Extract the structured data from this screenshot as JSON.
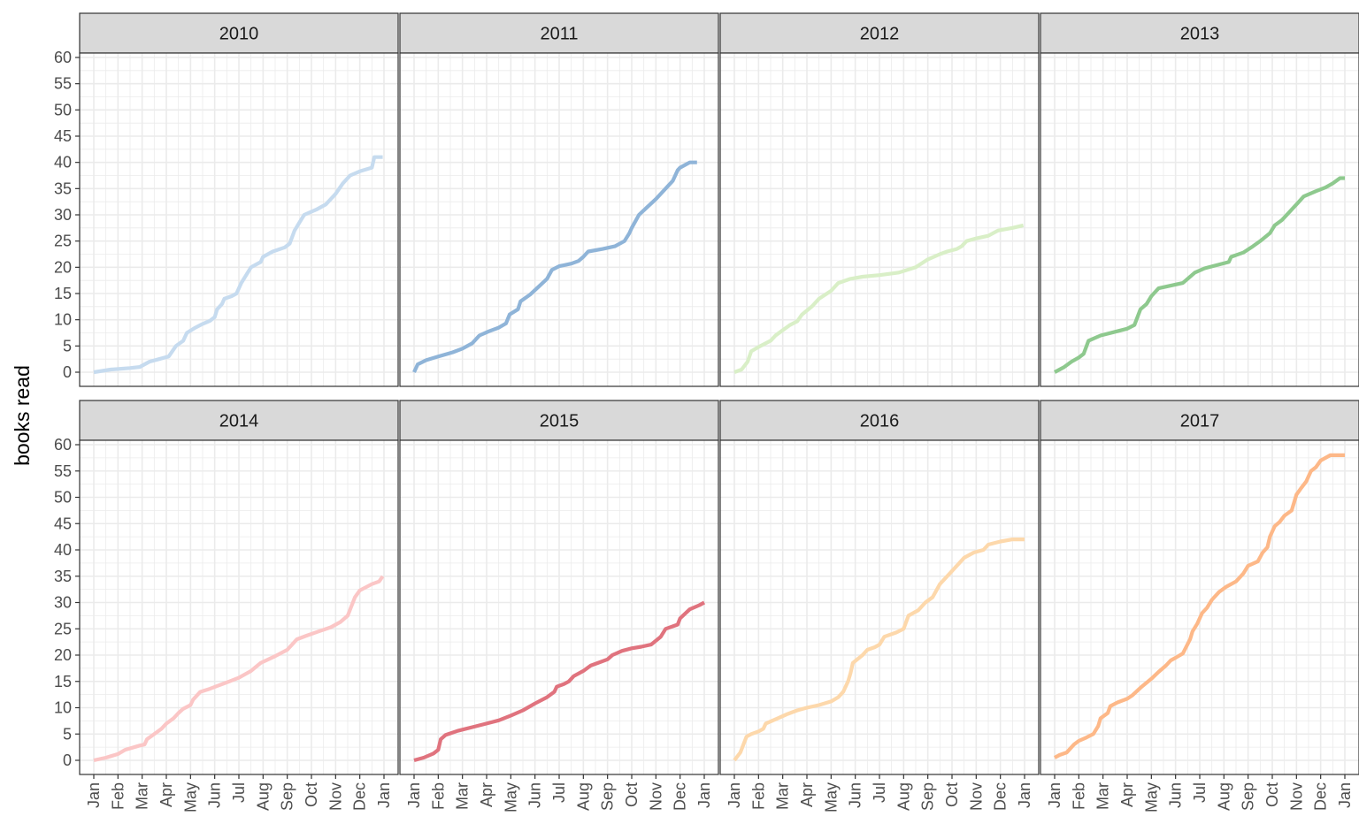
{
  "chart_data": {
    "type": "line",
    "layout": "facet-grid",
    "ylabel": "books read",
    "xlabel": "",
    "ylim": [
      0,
      60
    ],
    "yticks": [
      0,
      5,
      10,
      15,
      20,
      25,
      30,
      35,
      40,
      45,
      50,
      55,
      60
    ],
    "xticks": [
      "Jan",
      "Feb",
      "Mar",
      "Apr",
      "May",
      "Jun",
      "Jul",
      "Aug",
      "Sep",
      "Oct",
      "Nov",
      "Dec",
      "Jan"
    ],
    "xlim_months": [
      1,
      13
    ],
    "grid": true,
    "legend": "none",
    "panels": [
      {
        "label": "2010",
        "color": "#c6dbef",
        "points": [
          [
            1,
            0
          ],
          [
            1.7,
            0.5
          ],
          [
            2.5,
            0.8
          ],
          [
            2.9,
            1
          ],
          [
            3.3,
            2
          ],
          [
            3.7,
            2.5
          ],
          [
            4.1,
            3
          ],
          [
            4.4,
            5
          ],
          [
            4.7,
            6
          ],
          [
            4.85,
            7.5
          ],
          [
            5.2,
            8.5
          ],
          [
            5.5,
            9.2
          ],
          [
            5.8,
            9.8
          ],
          [
            6.0,
            10.5
          ],
          [
            6.1,
            12
          ],
          [
            6.3,
            13
          ],
          [
            6.4,
            14
          ],
          [
            6.7,
            14.5
          ],
          [
            6.9,
            15
          ],
          [
            7.1,
            17
          ],
          [
            7.5,
            20
          ],
          [
            7.9,
            21
          ],
          [
            8.0,
            22
          ],
          [
            8.4,
            23
          ],
          [
            8.9,
            23.8
          ],
          [
            9.1,
            24.5
          ],
          [
            9.3,
            27
          ],
          [
            9.5,
            28.5
          ],
          [
            9.7,
            30
          ],
          [
            10.2,
            31
          ],
          [
            10.6,
            32
          ],
          [
            11.0,
            34
          ],
          [
            11.3,
            36
          ],
          [
            11.6,
            37.5
          ],
          [
            12.0,
            38.3
          ],
          [
            12.5,
            39
          ],
          [
            12.6,
            41
          ],
          [
            12.95,
            41
          ]
        ]
      },
      {
        "label": "2011",
        "color": "#8fb4d8",
        "points": [
          [
            1,
            0
          ],
          [
            1.15,
            1.5
          ],
          [
            1.5,
            2.3
          ],
          [
            2.0,
            3
          ],
          [
            2.6,
            3.8
          ],
          [
            3.0,
            4.5
          ],
          [
            3.4,
            5.5
          ],
          [
            3.7,
            7
          ],
          [
            4.1,
            7.8
          ],
          [
            4.5,
            8.5
          ],
          [
            4.8,
            9.3
          ],
          [
            4.95,
            11
          ],
          [
            5.3,
            12
          ],
          [
            5.4,
            13.5
          ],
          [
            5.8,
            14.8
          ],
          [
            6.2,
            16.5
          ],
          [
            6.5,
            17.8
          ],
          [
            6.7,
            19.5
          ],
          [
            7.0,
            20.2
          ],
          [
            7.5,
            20.7
          ],
          [
            7.8,
            21.2
          ],
          [
            8.0,
            22
          ],
          [
            8.2,
            23
          ],
          [
            8.8,
            23.5
          ],
          [
            9.3,
            24
          ],
          [
            9.7,
            25
          ],
          [
            9.9,
            26.5
          ],
          [
            10.0,
            27.5
          ],
          [
            10.3,
            30
          ],
          [
            10.6,
            31.3
          ],
          [
            11.0,
            33
          ],
          [
            11.4,
            35
          ],
          [
            11.7,
            36.5
          ],
          [
            11.9,
            38.5
          ],
          [
            12.0,
            39
          ],
          [
            12.4,
            40
          ],
          [
            12.7,
            40
          ]
        ]
      },
      {
        "label": "2012",
        "color": "#d9efc7",
        "points": [
          [
            1,
            0
          ],
          [
            1.3,
            0.5
          ],
          [
            1.55,
            2
          ],
          [
            1.7,
            4
          ],
          [
            2.0,
            4.8
          ],
          [
            2.5,
            6
          ],
          [
            2.7,
            7
          ],
          [
            3.0,
            8
          ],
          [
            3.3,
            9
          ],
          [
            3.6,
            9.7
          ],
          [
            3.8,
            11
          ],
          [
            4.2,
            12.5
          ],
          [
            4.5,
            14
          ],
          [
            5.0,
            15.5
          ],
          [
            5.3,
            17
          ],
          [
            5.8,
            17.8
          ],
          [
            6.3,
            18.2
          ],
          [
            7.0,
            18.5
          ],
          [
            7.8,
            19
          ],
          [
            8.5,
            20
          ],
          [
            9.0,
            21.5
          ],
          [
            9.5,
            22.5
          ],
          [
            9.8,
            23
          ],
          [
            10.2,
            23.5
          ],
          [
            10.4,
            24
          ],
          [
            10.6,
            25
          ],
          [
            11.0,
            25.5
          ],
          [
            11.5,
            26
          ],
          [
            11.9,
            27
          ],
          [
            12.5,
            27.5
          ],
          [
            12.95,
            28
          ]
        ]
      },
      {
        "label": "2013",
        "color": "#8ec98e",
        "points": [
          [
            1,
            0
          ],
          [
            1.4,
            1
          ],
          [
            1.7,
            2
          ],
          [
            2.0,
            2.8
          ],
          [
            2.2,
            3.5
          ],
          [
            2.4,
            6
          ],
          [
            2.9,
            7
          ],
          [
            3.5,
            7.7
          ],
          [
            4.0,
            8.3
          ],
          [
            4.3,
            9
          ],
          [
            4.55,
            12
          ],
          [
            4.8,
            13
          ],
          [
            5.0,
            14.5
          ],
          [
            5.3,
            16
          ],
          [
            5.8,
            16.5
          ],
          [
            6.3,
            17
          ],
          [
            6.8,
            19
          ],
          [
            7.2,
            19.8
          ],
          [
            7.6,
            20.3
          ],
          [
            8.2,
            21
          ],
          [
            8.3,
            22
          ],
          [
            8.8,
            22.8
          ],
          [
            9.2,
            24
          ],
          [
            9.5,
            25
          ],
          [
            9.9,
            26.5
          ],
          [
            10.1,
            28
          ],
          [
            10.4,
            29
          ],
          [
            10.8,
            31
          ],
          [
            11.1,
            32.5
          ],
          [
            11.3,
            33.5
          ],
          [
            11.8,
            34.5
          ],
          [
            12.2,
            35.2
          ],
          [
            12.5,
            36
          ],
          [
            12.8,
            37
          ],
          [
            13.0,
            37
          ]
        ]
      },
      {
        "label": "2014",
        "color": "#fbc6c6",
        "points": [
          [
            1,
            0
          ],
          [
            1.5,
            0.5
          ],
          [
            2.0,
            1.2
          ],
          [
            2.3,
            2
          ],
          [
            2.9,
            2.8
          ],
          [
            3.1,
            3
          ],
          [
            3.2,
            4
          ],
          [
            3.5,
            5
          ],
          [
            3.8,
            6
          ],
          [
            4.0,
            7
          ],
          [
            4.3,
            8
          ],
          [
            4.5,
            9
          ],
          [
            4.7,
            9.8
          ],
          [
            5.0,
            10.5
          ],
          [
            5.1,
            11.5
          ],
          [
            5.4,
            13
          ],
          [
            5.8,
            13.6
          ],
          [
            6.2,
            14.3
          ],
          [
            6.6,
            15
          ],
          [
            7.0,
            15.7
          ],
          [
            7.5,
            17
          ],
          [
            7.9,
            18.5
          ],
          [
            8.5,
            19.8
          ],
          [
            9.0,
            21
          ],
          [
            9.4,
            23
          ],
          [
            9.8,
            23.7
          ],
          [
            10.3,
            24.5
          ],
          [
            10.8,
            25.3
          ],
          [
            11.2,
            26.3
          ],
          [
            11.5,
            27.5
          ],
          [
            11.8,
            31
          ],
          [
            12.0,
            32.3
          ],
          [
            12.5,
            33.5
          ],
          [
            12.8,
            34
          ],
          [
            12.95,
            35
          ]
        ]
      },
      {
        "label": "2015",
        "color": "#e0737e",
        "points": [
          [
            1,
            0
          ],
          [
            1.4,
            0.5
          ],
          [
            1.8,
            1.3
          ],
          [
            2.0,
            2
          ],
          [
            2.1,
            4
          ],
          [
            2.3,
            4.8
          ],
          [
            2.8,
            5.6
          ],
          [
            3.5,
            6.4
          ],
          [
            4.0,
            7
          ],
          [
            4.5,
            7.6
          ],
          [
            5.0,
            8.5
          ],
          [
            5.5,
            9.5
          ],
          [
            6.0,
            10.8
          ],
          [
            6.5,
            12
          ],
          [
            6.8,
            13
          ],
          [
            6.9,
            14
          ],
          [
            7.2,
            14.5
          ],
          [
            7.4,
            15
          ],
          [
            7.6,
            16
          ],
          [
            8.0,
            17
          ],
          [
            8.3,
            18
          ],
          [
            8.6,
            18.5
          ],
          [
            9.0,
            19.2
          ],
          [
            9.2,
            20
          ],
          [
            9.6,
            20.8
          ],
          [
            10.0,
            21.3
          ],
          [
            10.4,
            21.6
          ],
          [
            10.8,
            22
          ],
          [
            11.2,
            23.5
          ],
          [
            11.4,
            25
          ],
          [
            11.9,
            25.8
          ],
          [
            12.0,
            27
          ],
          [
            12.4,
            28.7
          ],
          [
            12.8,
            29.5
          ],
          [
            13.0,
            30
          ]
        ]
      },
      {
        "label": "2016",
        "color": "#fdd8ab",
        "points": [
          [
            1,
            0
          ],
          [
            1.25,
            1.5
          ],
          [
            1.5,
            4.5
          ],
          [
            1.7,
            5
          ],
          [
            2.0,
            5.5
          ],
          [
            2.2,
            6
          ],
          [
            2.3,
            7
          ],
          [
            2.8,
            8
          ],
          [
            3.2,
            8.8
          ],
          [
            3.6,
            9.5
          ],
          [
            4.0,
            10
          ],
          [
            4.5,
            10.5
          ],
          [
            5.0,
            11.2
          ],
          [
            5.3,
            12
          ],
          [
            5.5,
            13
          ],
          [
            5.7,
            15
          ],
          [
            5.8,
            16.5
          ],
          [
            5.9,
            18.5
          ],
          [
            6.3,
            20
          ],
          [
            6.5,
            21
          ],
          [
            6.8,
            21.5
          ],
          [
            7.0,
            22
          ],
          [
            7.2,
            23.5
          ],
          [
            7.7,
            24.3
          ],
          [
            8.0,
            25
          ],
          [
            8.2,
            27.5
          ],
          [
            8.6,
            28.5
          ],
          [
            8.9,
            30
          ],
          [
            9.2,
            31
          ],
          [
            9.5,
            33.5
          ],
          [
            9.9,
            35.5
          ],
          [
            10.3,
            37.5
          ],
          [
            10.5,
            38.5
          ],
          [
            10.9,
            39.5
          ],
          [
            11.3,
            40
          ],
          [
            11.5,
            41
          ],
          [
            12.0,
            41.6
          ],
          [
            12.5,
            42
          ],
          [
            13.0,
            42
          ]
        ]
      },
      {
        "label": "2017",
        "color": "#fdb888",
        "points": [
          [
            1,
            0.5
          ],
          [
            1.2,
            1
          ],
          [
            1.5,
            1.5
          ],
          [
            1.8,
            3
          ],
          [
            2.0,
            3.7
          ],
          [
            2.3,
            4.3
          ],
          [
            2.6,
            5
          ],
          [
            2.8,
            6.5
          ],
          [
            2.9,
            8
          ],
          [
            3.2,
            9
          ],
          [
            3.3,
            10.3
          ],
          [
            3.6,
            11
          ],
          [
            4.0,
            11.7
          ],
          [
            4.2,
            12.3
          ],
          [
            4.6,
            14
          ],
          [
            5.0,
            15.5
          ],
          [
            5.3,
            16.8
          ],
          [
            5.6,
            18
          ],
          [
            5.8,
            19
          ],
          [
            6.0,
            19.5
          ],
          [
            6.3,
            20.3
          ],
          [
            6.6,
            23
          ],
          [
            6.7,
            24.5
          ],
          [
            6.9,
            26
          ],
          [
            7.1,
            28
          ],
          [
            7.3,
            29
          ],
          [
            7.5,
            30.5
          ],
          [
            7.8,
            32
          ],
          [
            8.1,
            33
          ],
          [
            8.5,
            34
          ],
          [
            8.8,
            35.5
          ],
          [
            9.0,
            37
          ],
          [
            9.4,
            37.8
          ],
          [
            9.6,
            39.5
          ],
          [
            9.8,
            40.5
          ],
          [
            9.9,
            42.5
          ],
          [
            10.1,
            44.5
          ],
          [
            10.3,
            45.3
          ],
          [
            10.5,
            46.5
          ],
          [
            10.8,
            47.5
          ],
          [
            11.0,
            50.5
          ],
          [
            11.2,
            51.8
          ],
          [
            11.4,
            53
          ],
          [
            11.6,
            55
          ],
          [
            11.8,
            55.7
          ],
          [
            12.0,
            57
          ],
          [
            12.4,
            58
          ],
          [
            13.0,
            58
          ]
        ]
      }
    ]
  }
}
